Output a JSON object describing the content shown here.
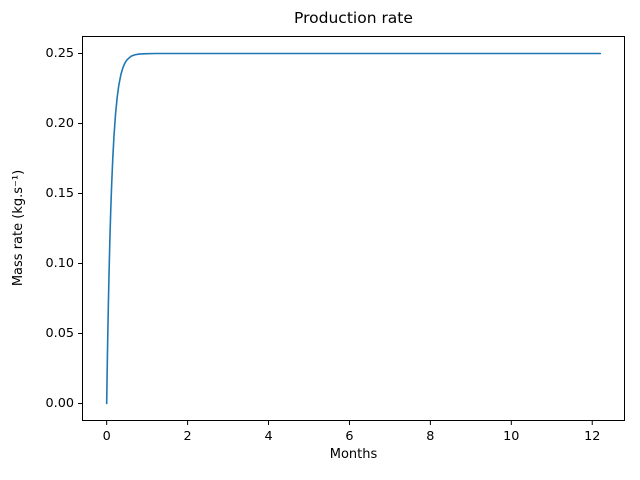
{
  "chart_data": {
    "type": "line",
    "title": "Production rate",
    "xlabel": "Months",
    "ylabel": "Mass rate (kg.s⁻¹)",
    "grid": false,
    "legend": "none",
    "background_color": "#ffffff",
    "spine_color": "#000000",
    "xlim": [
      -0.61,
      12.81
    ],
    "ylim": [
      -0.0125,
      0.2625
    ],
    "x_ticks": [
      {
        "value": 0,
        "label": "0"
      },
      {
        "value": 2,
        "label": "2"
      },
      {
        "value": 4,
        "label": "4"
      },
      {
        "value": 6,
        "label": "6"
      },
      {
        "value": 8,
        "label": "8"
      },
      {
        "value": 10,
        "label": "10"
      },
      {
        "value": 12,
        "label": "12"
      }
    ],
    "y_ticks": [
      {
        "value": 0.0,
        "label": "0.00"
      },
      {
        "value": 0.05,
        "label": "0.05"
      },
      {
        "value": 0.1,
        "label": "0.10"
      },
      {
        "value": 0.15,
        "label": "0.15"
      },
      {
        "value": 0.2,
        "label": "0.20"
      },
      {
        "value": 0.25,
        "label": "0.25"
      }
    ],
    "series": [
      {
        "name": "production-rate",
        "color": "#1f77b4",
        "saturation_value": 0.25,
        "x": [
          0,
          0.01,
          0.02,
          0.03,
          0.04,
          0.06,
          0.08,
          0.1,
          0.12,
          0.15,
          0.18,
          0.22,
          0.26,
          0.3,
          0.35,
          0.4,
          0.45,
          0.5,
          0.6,
          0.7,
          0.8,
          0.9,
          1.0,
          1.2,
          1.5,
          2.0,
          2.5,
          3.0,
          4.0,
          5.0,
          6.0,
          7.0,
          8.0,
          9.0,
          10.0,
          11.0,
          12.0,
          12.2
        ],
        "y": [
          0,
          0.0192,
          0.037,
          0.0534,
          0.0685,
          0.0953,
          0.1182,
          0.1377,
          0.1543,
          0.1747,
          0.1908,
          0.207,
          0.2188,
          0.2273,
          0.2348,
          0.2398,
          0.2432,
          0.2454,
          0.248,
          0.2491,
          0.2496,
          0.2498,
          0.2499,
          0.25,
          0.25,
          0.25,
          0.25,
          0.25,
          0.25,
          0.25,
          0.25,
          0.25,
          0.25,
          0.25,
          0.25,
          0.25,
          0.25,
          0.25
        ]
      }
    ]
  }
}
